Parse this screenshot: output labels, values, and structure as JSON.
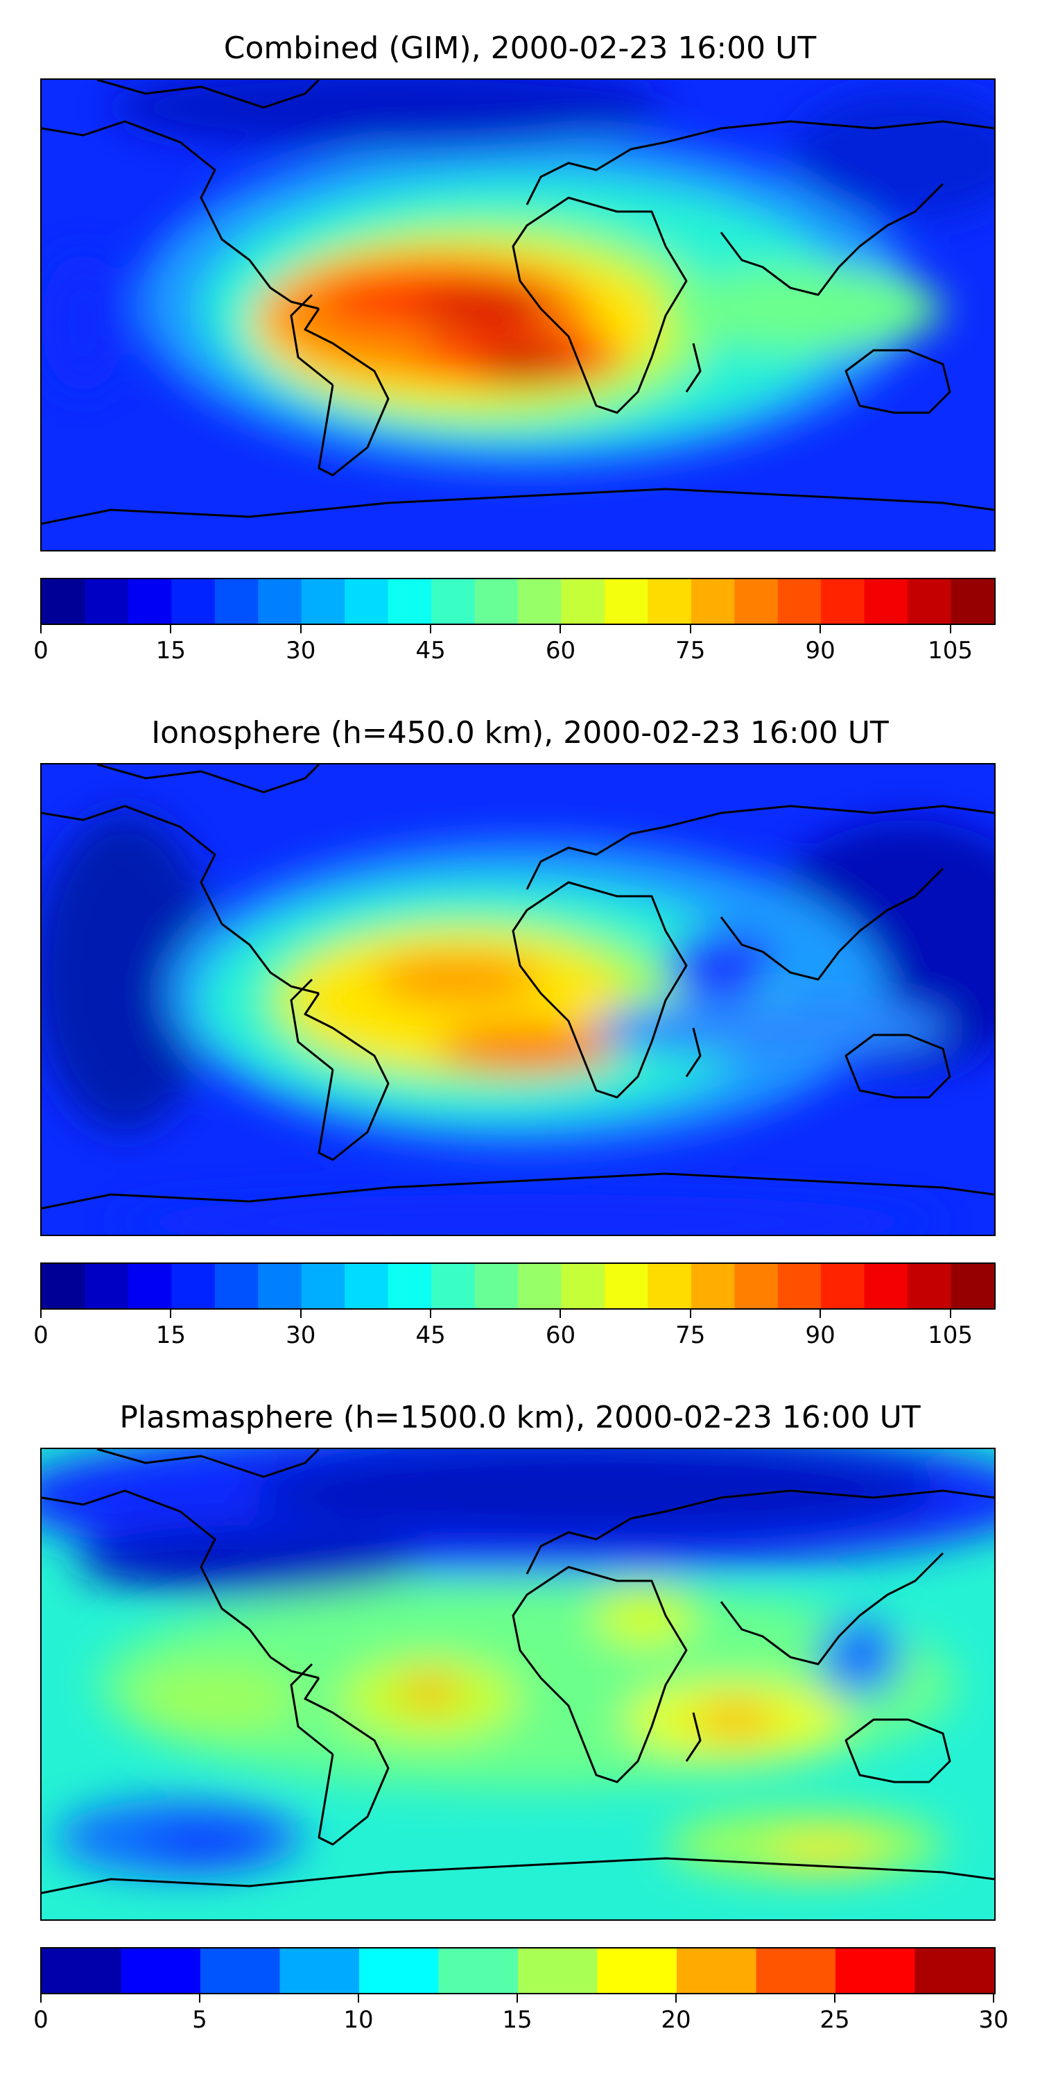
{
  "panels": [
    {
      "id": "combined",
      "title": "Combined (GIM), 2000-02-23 16:00 UT",
      "colorbar": {
        "min": 0,
        "max": 110,
        "levels": 22,
        "tick_labels": [
          "0",
          "15",
          "30",
          "45",
          "60",
          "75",
          "90",
          "105"
        ],
        "tick_values": [
          0,
          15,
          30,
          45,
          60,
          75,
          90,
          105
        ]
      }
    },
    {
      "id": "ionosphere",
      "title": "Ionosphere  (h=450.0 km), 2000-02-23 16:00 UT",
      "colorbar": {
        "min": 0,
        "max": 110,
        "levels": 22,
        "tick_labels": [
          "0",
          "15",
          "30",
          "45",
          "60",
          "75",
          "90",
          "105"
        ],
        "tick_values": [
          0,
          15,
          30,
          45,
          60,
          75,
          90,
          105
        ]
      }
    },
    {
      "id": "plasmasphere",
      "title": "Plasmasphere (h=1500.0 km), 2000-02-23 16:00 UT",
      "colorbar": {
        "min": 0,
        "max": 30,
        "levels": 12,
        "tick_labels": [
          "0",
          "5",
          "10",
          "15",
          "20",
          "25",
          "30"
        ],
        "tick_values": [
          0,
          5,
          10,
          15,
          20,
          25,
          30
        ]
      }
    }
  ],
  "colormap": "jet"
}
